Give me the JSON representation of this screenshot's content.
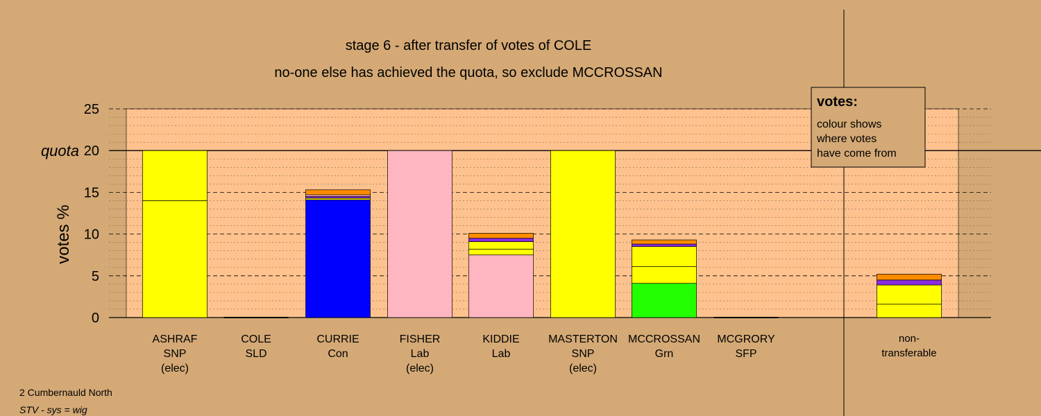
{
  "chart_data": {
    "type": "bar",
    "title": "stage 6 - after transfer of votes of COLE",
    "subtitle": "no-one else has achieved the quota, so exclude MCCROSSAN",
    "ylabel": "votes %",
    "ylim": [
      0,
      25
    ],
    "yticks": [
      "0",
      "5",
      "10",
      "15",
      "20",
      "25"
    ],
    "quota_label": "quota",
    "quota_value": 20,
    "grid": true,
    "legend": {
      "title": "votes:",
      "lines": [
        "colour shows",
        "where votes",
        "have come from"
      ],
      "placement": "top-right"
    },
    "categories": [
      {
        "name": "ASHRAF",
        "party": "SNP",
        "note": "(elec)",
        "segments": [
          {
            "value": 14.0,
            "color": "#ffff00"
          },
          {
            "value": 6.0,
            "color": "#ffff00"
          }
        ]
      },
      {
        "name": "COLE",
        "party": "SLD",
        "note": "",
        "segments": []
      },
      {
        "name": "CURRIE",
        "party": "Con",
        "note": "",
        "segments": [
          {
            "value": 14.1,
            "color": "#0000ff"
          },
          {
            "value": 0.2,
            "color": "#ffff00"
          },
          {
            "value": 0.2,
            "color": "#8a2be2"
          },
          {
            "value": 0.2,
            "color": "#ffb6c1"
          },
          {
            "value": 0.6,
            "color": "#ff8c00"
          }
        ]
      },
      {
        "name": "FISHER",
        "party": "Lab",
        "note": "(elec)",
        "segments": [
          {
            "value": 20.0,
            "color": "#ffb6c1"
          }
        ]
      },
      {
        "name": "KIDDIE",
        "party": "Lab",
        "note": "",
        "segments": [
          {
            "value": 7.5,
            "color": "#ffb6c1"
          },
          {
            "value": 0.7,
            "color": "#ffff00"
          },
          {
            "value": 0.9,
            "color": "#ffff00"
          },
          {
            "value": 0.4,
            "color": "#8a2be2"
          },
          {
            "value": 0.6,
            "color": "#ff8c00"
          }
        ]
      },
      {
        "name": "MASTERTON",
        "party": "SNP",
        "note": "(elec)",
        "segments": [
          {
            "value": 20.0,
            "color": "#ffff00"
          }
        ]
      },
      {
        "name": "MCCROSSAN",
        "party": "Grn",
        "note": "",
        "segments": [
          {
            "value": 4.1,
            "color": "#22ff00"
          },
          {
            "value": 2.0,
            "color": "#ffff00"
          },
          {
            "value": 2.4,
            "color": "#ffff00"
          },
          {
            "value": 0.3,
            "color": "#8a2be2"
          },
          {
            "value": 0.5,
            "color": "#ff8c00"
          }
        ]
      },
      {
        "name": "MCGRORY",
        "party": "SFP",
        "note": "",
        "segments": []
      }
    ],
    "nontransferable": {
      "label_lines": [
        "non-",
        "transferable"
      ],
      "segments": [
        {
          "value": 1.6,
          "color": "#ffff00"
        },
        {
          "value": 2.3,
          "color": "#ffff00"
        },
        {
          "value": 0.6,
          "color": "#8a2be2"
        },
        {
          "value": 0.7,
          "color": "#ff8c00"
        }
      ]
    }
  },
  "footer": {
    "line1": "2 Cumbernauld North",
    "line2": "STV - sys = wig"
  },
  "colors": {
    "background": "#d4a976",
    "plot_area": "#fdc28e"
  }
}
